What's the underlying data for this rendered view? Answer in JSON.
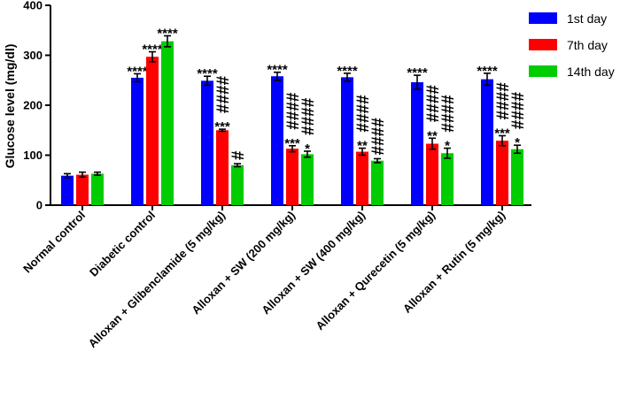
{
  "chart_data": {
    "type": "bar",
    "ylabel": "Glucose level (mg/dl)",
    "ylim": [
      0,
      400
    ],
    "yticks": [
      "0",
      "100",
      "200",
      "300",
      "400"
    ],
    "grid": false,
    "legend_position": "top-right",
    "categories": [
      "Normal control",
      "Diabetic control",
      "Alloxan + Glibenclamide (5 mg/kg)",
      "Alloxan + SW (200 mg/kg)",
      "Alloxan + SW (400 mg/kg)",
      "Alloxan + Qurecetin (5 mg/kg)",
      "Alloxan + Rutin (5 mg/kg)"
    ],
    "series": [
      {
        "name": "1st day",
        "color": "#0000ff",
        "values": [
          59,
          255,
          249,
          258,
          256,
          246,
          252
        ],
        "errors": [
          4,
          8,
          9,
          8,
          8,
          14,
          12
        ],
        "stars": [
          "",
          "****",
          "****",
          "****",
          "****",
          "****",
          "****"
        ],
        "hashes": [
          "",
          "",
          "",
          "",
          "",
          "",
          ""
        ]
      },
      {
        "name": "7th day",
        "color": "#ff0000",
        "values": [
          61,
          297,
          150,
          113,
          107,
          123,
          129
        ],
        "errors": [
          5,
          10,
          2,
          6,
          7,
          11,
          10
        ],
        "stars": [
          "",
          "****",
          "***",
          "***",
          "**",
          "**",
          "***"
        ],
        "hashes": [
          "",
          "",
          "####",
          "####",
          "####",
          "####",
          "####"
        ]
      },
      {
        "name": "14th day",
        "color": "#00cc00",
        "values": [
          63,
          328,
          80,
          102,
          89,
          104,
          112
        ],
        "errors": [
          3,
          11,
          3,
          6,
          4,
          10,
          8
        ],
        "stars": [
          "",
          "****",
          "",
          "*",
          "",
          "*",
          "*"
        ],
        "hashes": [
          "",
          "",
          "#",
          "####",
          "####",
          "####",
          "####"
        ]
      }
    ]
  }
}
